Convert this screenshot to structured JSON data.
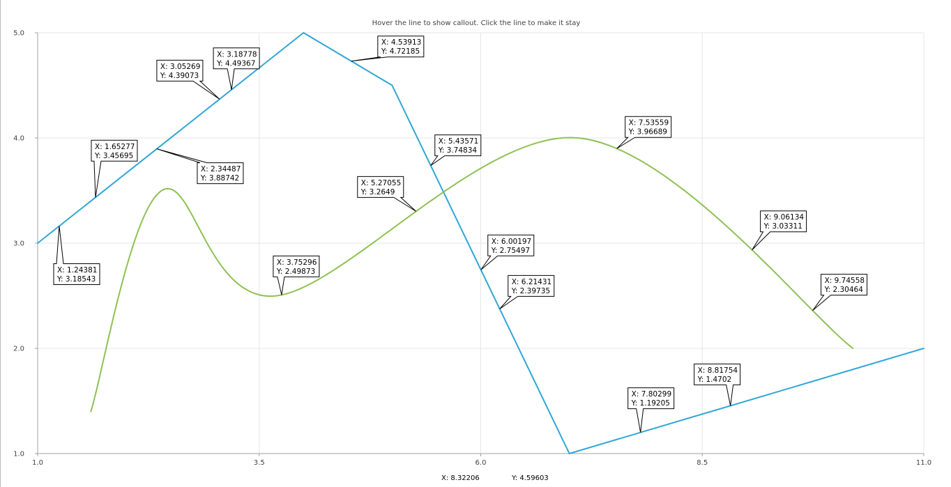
{
  "instruction": "Hover the line to show callout. Click the line to make it stay",
  "colors": {
    "line_series": "#2fa6d6",
    "spline_series": "#8ec152",
    "grid": "#e6e6e6",
    "axis": "#a0a0a0"
  },
  "chart_data": {
    "type": "line",
    "title": "Hover the line to show callout. Click the line to make it stay",
    "xlim": [
      1.0,
      11.0
    ],
    "ylim": [
      1.0,
      5.0
    ],
    "grid": true,
    "legend": "none",
    "x_ticks": [
      "1.0",
      "3.5",
      "6.0",
      "8.5",
      "11.0"
    ],
    "y_ticks": [
      "1.0",
      "2.0",
      "3.0",
      "4.0",
      "5.0"
    ],
    "series": [
      {
        "type": "line",
        "color": "#2fa6d6",
        "x": [
          1.0,
          4.0,
          5.0,
          7.0,
          11.0
        ],
        "y": [
          3.0,
          5.0,
          4.5,
          1.0,
          2.0
        ]
      },
      {
        "type": "spline",
        "color": "#8ec152",
        "x": [
          1.6,
          2.4,
          3.7,
          7.1,
          10.2
        ],
        "y": [
          1.4,
          3.5,
          2.5,
          4.0,
          2.0
        ]
      }
    ],
    "callouts": [
      {
        "x": "1.24381",
        "y": "3.18543",
        "series": 0
      },
      {
        "x": "1.65277",
        "y": "3.45695",
        "series": 0
      },
      {
        "x": "2.34487",
        "y": "3.88742",
        "series": 0
      },
      {
        "x": "3.05269",
        "y": "4.39073",
        "series": 0
      },
      {
        "x": "3.18778",
        "y": "4.49367",
        "series": 0
      },
      {
        "x": "4.53913",
        "y": "4.72185",
        "series": 0
      },
      {
        "x": "5.43571",
        "y": "3.74834",
        "series": 0
      },
      {
        "x": "6.00197",
        "y": "2.75497",
        "series": 0
      },
      {
        "x": "6.21431",
        "y": "2.39735",
        "series": 0
      },
      {
        "x": "7.80299",
        "y": "1.19205",
        "series": 0
      },
      {
        "x": "8.81754",
        "y": "1.4702",
        "series": 0
      },
      {
        "x": "3.75296",
        "y": "2.49873",
        "series": 1
      },
      {
        "x": "5.27055",
        "y": "3.2649",
        "series": 1
      },
      {
        "x": "7.53559",
        "y": "3.96689",
        "series": 1
      },
      {
        "x": "9.06134",
        "y": "3.03311",
        "series": 1
      },
      {
        "x": "9.74558",
        "y": "2.30464",
        "series": 1
      }
    ]
  },
  "cursor_readout": {
    "x_text": "X: 8.32206",
    "y_text": "Y: 4.59603"
  }
}
